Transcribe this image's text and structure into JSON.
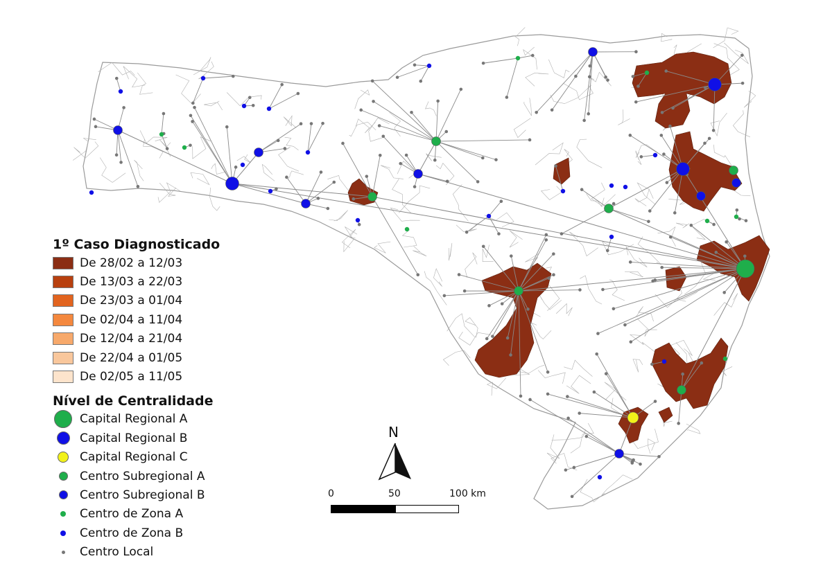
{
  "legend": {
    "cases_title": "1º Caso Diagnosticado",
    "case_classes": [
      {
        "label": "De 28/02 a 12/03",
        "color": "#8b2e14"
      },
      {
        "label": "De 13/03 a 22/03",
        "color": "#b8400f"
      },
      {
        "label": "De 23/03 a 01/04",
        "color": "#e2641f"
      },
      {
        "label": "De 02/04 a 11/04",
        "color": "#f4883e"
      },
      {
        "label": "De 12/04 a 21/04",
        "color": "#f7a96b"
      },
      {
        "label": "De 22/04 a 01/05",
        "color": "#f9c79c"
      },
      {
        "label": "De 02/05 a 11/05",
        "color": "#fde4cc"
      }
    ],
    "centrality_title": "Nível de Centralidade",
    "centrality_levels": [
      {
        "label": "Capital Regional A",
        "color": "#1fae4b",
        "size": "xl"
      },
      {
        "label": "Capital Regional B",
        "color": "#1010e6",
        "size": "l"
      },
      {
        "label": "Capital Regional C",
        "color": "#f2f21a",
        "size": "m"
      },
      {
        "label": "Centro Subregional A",
        "color": "#1fae4b",
        "size": "s"
      },
      {
        "label": "Centro Subregional B",
        "color": "#1010e6",
        "size": "s"
      },
      {
        "label": "Centro de Zona A",
        "color": "#1fae4b",
        "size": "xs"
      },
      {
        "label": "Centro de Zona B",
        "color": "#1010e6",
        "size": "xs"
      },
      {
        "label": "Centro Local",
        "color": "#777777",
        "size": "xxs"
      }
    ]
  },
  "north_arrow": {
    "label": "N"
  },
  "scale_bar": {
    "labels": [
      "0",
      "50",
      "100 km"
    ]
  },
  "colors": {
    "municipality_border": "#b0b0b0",
    "connection_line": "#8a8a8a",
    "state_outline": "#9a9a9a"
  }
}
